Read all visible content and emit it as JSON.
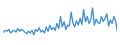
{
  "chart_data": {
    "type": "line",
    "color": "#3d8fd6",
    "tick_labels": false,
    "ylim": [
      0,
      45
    ],
    "values": [
      12,
      14,
      13,
      15,
      11,
      13,
      14,
      12,
      16,
      13,
      15,
      14,
      12,
      10,
      13,
      11,
      14,
      9,
      15,
      13,
      17,
      12,
      14,
      11,
      18,
      13,
      20,
      15,
      17,
      14,
      22,
      16,
      30,
      18,
      24,
      15,
      20,
      19,
      35,
      22,
      18,
      25,
      20,
      28,
      21,
      38,
      24,
      30,
      22,
      26,
      40,
      20,
      27,
      23,
      22,
      30,
      24,
      28,
      33,
      19,
      26,
      22,
      30,
      24,
      12
    ]
  }
}
